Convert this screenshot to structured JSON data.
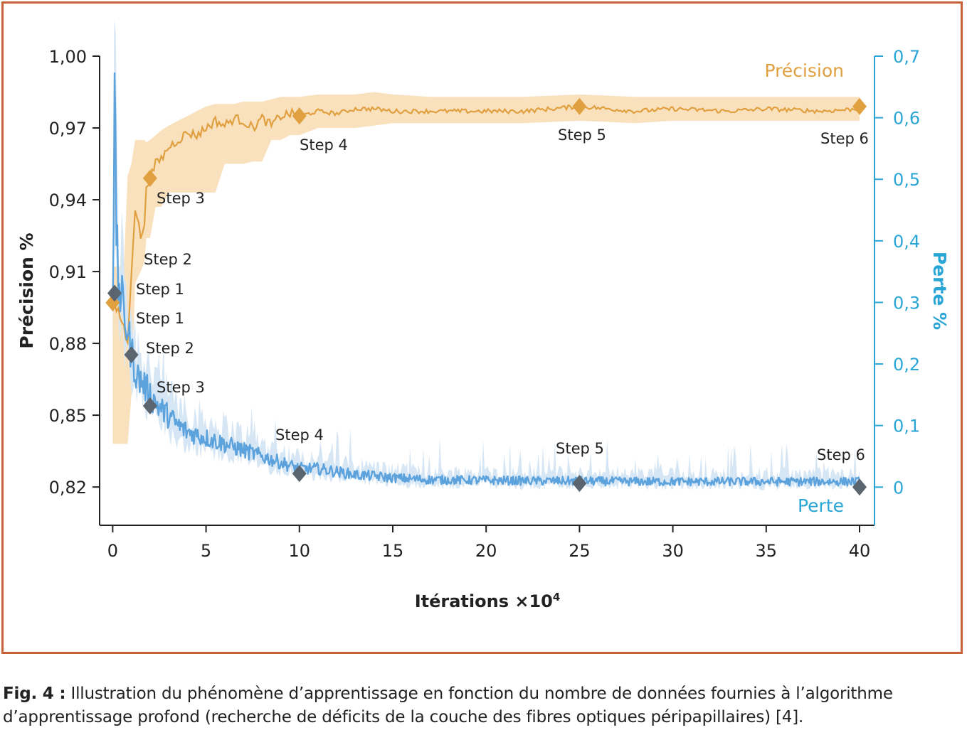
{
  "chart_data": {
    "type": "line",
    "xlabel": "Itérations ×10",
    "xlabel_sup": "4",
    "ylabel_left": "Précision %",
    "ylabel_right": "Perte %",
    "x_ticks": [
      0,
      5,
      10,
      15,
      20,
      25,
      30,
      35,
      40
    ],
    "y_left_ticks": [
      "1,00",
      "0,97",
      "0,94",
      "0,91",
      "0,88",
      "0,85",
      "0,82"
    ],
    "y_left_tick_values": [
      1.0,
      0.97,
      0.94,
      0.91,
      0.88,
      0.85,
      0.82
    ],
    "y_right_ticks": [
      "0,7",
      "0,6",
      "0,5",
      "0,4",
      "0,3",
      "0,2",
      "0,1",
      "0"
    ],
    "y_right_tick_values": [
      0.7,
      0.6,
      0.5,
      0.4,
      0.3,
      0.2,
      0.1,
      0
    ],
    "xlim": [
      -0.7,
      40.8
    ],
    "ylim_left": [
      0.804,
      1.0
    ],
    "ylim_right": [
      -0.062,
      0.7
    ],
    "colors": {
      "precision": "#e0a040",
      "precision_band": "#f9e1bd",
      "loss": "#5ca3dd",
      "loss_band": "#d6e6f4",
      "marker_loss": "#5a6570",
      "right_axis": "#2aa6d6",
      "frame": "#c8603a"
    },
    "series": [
      {
        "name": "Précision",
        "axis": "left",
        "x": [
          0,
          0.3,
          0.6,
          0.8,
          1.0,
          1.2,
          1.5,
          1.7,
          1.8,
          2.0,
          2.3,
          2.6,
          3.0,
          3.5,
          4.0,
          4.5,
          5.0,
          5.5,
          6.0,
          6.5,
          7.0,
          7.5,
          8.0,
          8.5,
          9.0,
          9.5,
          10,
          11,
          12,
          13,
          14,
          15,
          17,
          20,
          22,
          25,
          28,
          30,
          33,
          35,
          38,
          40
        ],
        "y": [
          0.896,
          0.893,
          0.887,
          0.879,
          0.91,
          0.937,
          0.925,
          0.928,
          0.946,
          0.949,
          0.955,
          0.957,
          0.962,
          0.965,
          0.968,
          0.967,
          0.97,
          0.973,
          0.971,
          0.974,
          0.973,
          0.97,
          0.974,
          0.971,
          0.975,
          0.976,
          0.975,
          0.977,
          0.976,
          0.978,
          0.978,
          0.977,
          0.977,
          0.977,
          0.977,
          0.979,
          0.977,
          0.978,
          0.977,
          0.978,
          0.977,
          0.978
        ],
        "band_upper": [
          0.912,
          0.912,
          0.912,
          0.95,
          0.955,
          0.965,
          0.965,
          0.965,
          0.964,
          0.965,
          0.967,
          0.969,
          0.971,
          0.973,
          0.975,
          0.977,
          0.979,
          0.98,
          0.98,
          0.98,
          0.981,
          0.981,
          0.981,
          0.982,
          0.983,
          0.983,
          0.983,
          0.984,
          0.984,
          0.984,
          0.985,
          0.984,
          0.983,
          0.983,
          0.983,
          0.984,
          0.983,
          0.983,
          0.983,
          0.983,
          0.983,
          0.983
        ],
        "band_lower": [
          0.838,
          0.838,
          0.838,
          0.838,
          0.858,
          0.905,
          0.91,
          0.914,
          0.924,
          0.924,
          0.937,
          0.937,
          0.943,
          0.943,
          0.943,
          0.943,
          0.943,
          0.943,
          0.955,
          0.955,
          0.955,
          0.956,
          0.956,
          0.965,
          0.965,
          0.967,
          0.967,
          0.97,
          0.97,
          0.97,
          0.971,
          0.972,
          0.972,
          0.972,
          0.972,
          0.973,
          0.972,
          0.973,
          0.973,
          0.973,
          0.973,
          0.973
        ]
      },
      {
        "name": "Perte",
        "axis": "right",
        "x": [
          0,
          0.1,
          0.2,
          0.3,
          0.5,
          0.7,
          1.0,
          1.3,
          1.6,
          2.0,
          2.5,
          3.0,
          3.5,
          4.0,
          5.0,
          6.0,
          7.0,
          8.0,
          9.0,
          10,
          11,
          12,
          13,
          14,
          15,
          17,
          20,
          23,
          25,
          28,
          30,
          33,
          35,
          38,
          40
        ],
        "y": [
          0.3,
          0.62,
          0.42,
          0.33,
          0.3,
          0.27,
          0.22,
          0.18,
          0.17,
          0.15,
          0.13,
          0.115,
          0.1,
          0.09,
          0.08,
          0.07,
          0.06,
          0.05,
          0.04,
          0.03,
          0.03,
          0.025,
          0.02,
          0.018,
          0.015,
          0.012,
          0.011,
          0.01,
          0.01,
          0.009,
          0.009,
          0.009,
          0.009,
          0.009,
          0.009
        ]
      }
    ],
    "markers": {
      "precision": [
        {
          "x": 0,
          "y": 0.897,
          "label": "Step 1"
        },
        {
          "x": 2,
          "y": 0.949,
          "label": "Step 3"
        },
        {
          "x": 10,
          "y": 0.975,
          "label": "Step 4"
        },
        {
          "x": 25,
          "y": 0.979,
          "label": "Step 5"
        },
        {
          "x": 40,
          "y": 0.979,
          "label": "Step 6"
        }
      ],
      "loss": [
        {
          "x": 0.1,
          "y": 0.315,
          "label": "Step 1"
        },
        {
          "x": 1,
          "y": 0.215,
          "label": "Step 2"
        },
        {
          "x": 2,
          "y": 0.132,
          "label": "Step 3"
        },
        {
          "x": 10,
          "y": 0.022,
          "label": "Step 4"
        },
        {
          "x": 25,
          "y": 0.006,
          "label": "Step 5"
        },
        {
          "x": 40,
          "y": 0.0,
          "label": "Step 6"
        }
      ],
      "precision_step2_label": "Step 2"
    },
    "legend": {
      "precision": "Précision",
      "loss": "Perte"
    }
  },
  "caption": {
    "label": "Fig. 4 :",
    "text": " Illustration du phénomène d’apprentissage en fonction du nombre de données fournies à l’algorithme d’apprentissage profond (recherche de déficits de la couche des fibres optiques péripapillaires) [4]."
  }
}
